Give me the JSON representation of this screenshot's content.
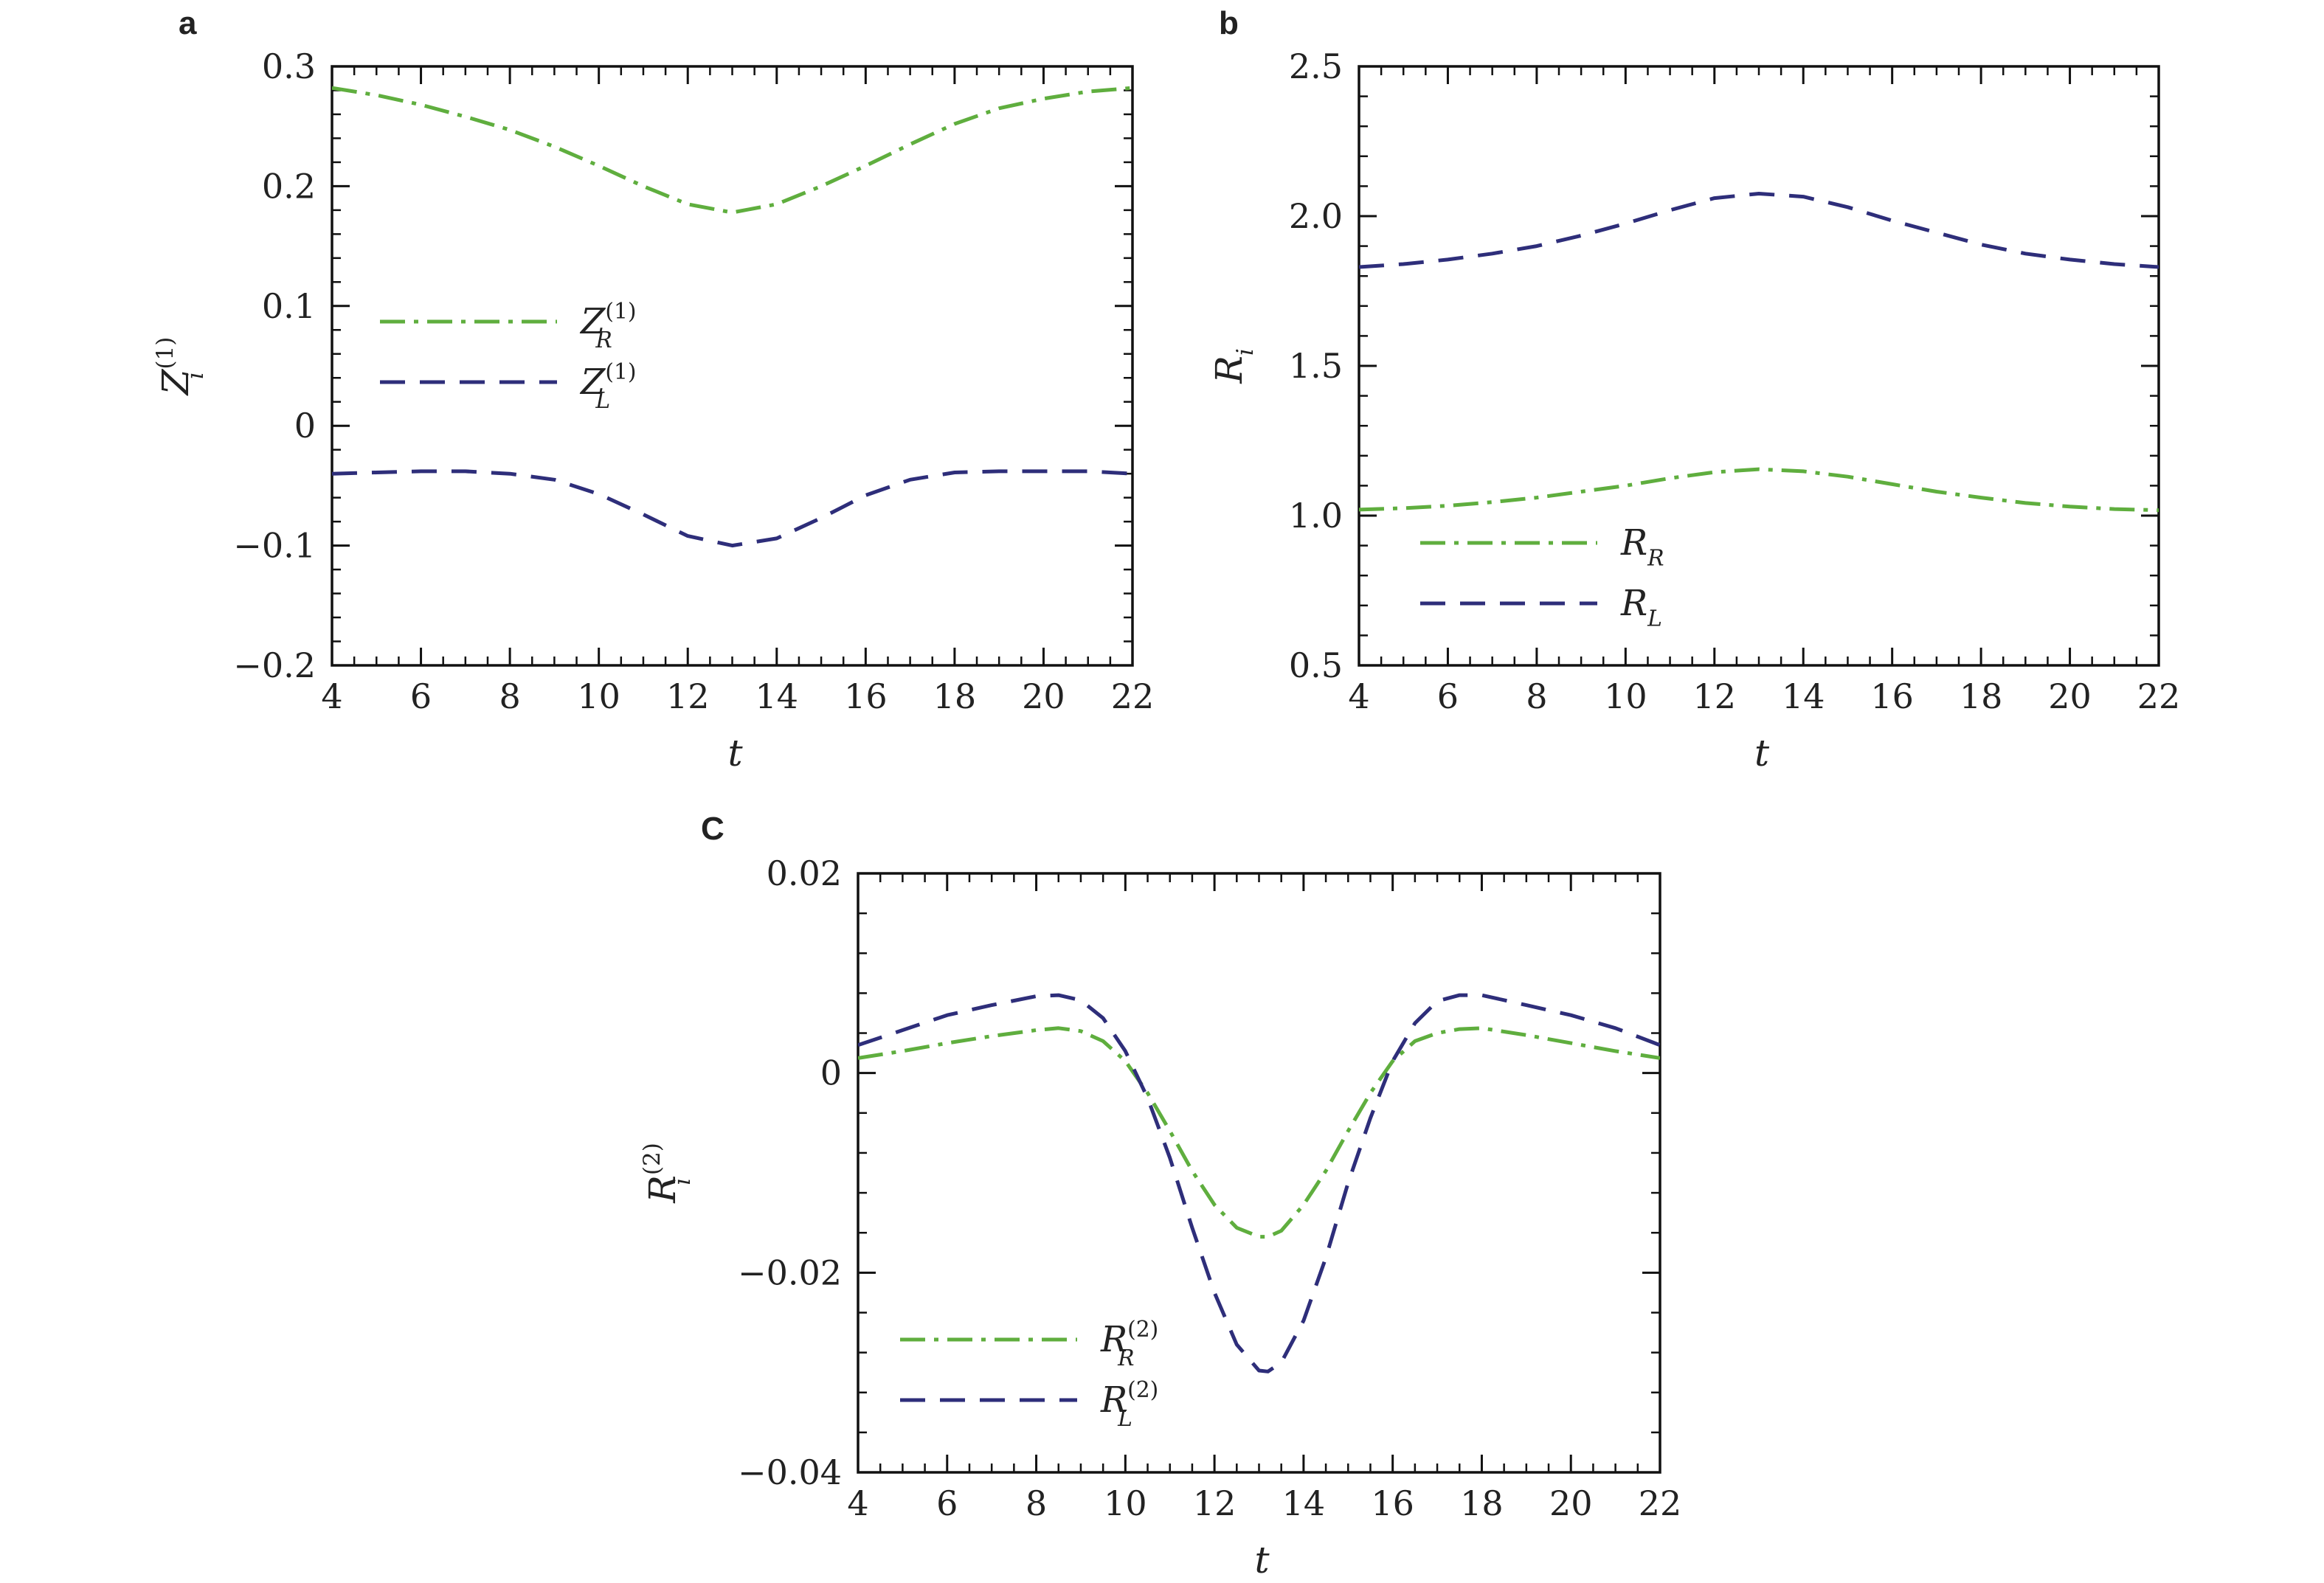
{
  "chart_data": [
    {
      "panel_label": "a",
      "type": "line",
      "xlabel": "t",
      "ylabel": {
        "base": "Z",
        "sub": "i",
        "sup": "(1)"
      },
      "xlim": [
        4,
        22
      ],
      "ylim": [
        -0.2,
        0.3
      ],
      "xticks": [
        4,
        6,
        8,
        10,
        12,
        14,
        16,
        18,
        20,
        22
      ],
      "xtick_labels": [
        "4",
        "6",
        "8",
        "10",
        "12",
        "14",
        "16",
        "18",
        "20",
        "22"
      ],
      "yticks": [
        -0.2,
        -0.1,
        0,
        0.1,
        0.2,
        0.3
      ],
      "ytick_labels": [
        "−0.2",
        "−0.1",
        "0",
        "0.1",
        "0.2",
        "0.3"
      ],
      "legend_position": "center-left",
      "series": [
        {
          "name": {
            "base": "Z",
            "sub": "R",
            "sup": "(1)"
          },
          "style": "dashdot",
          "color": "#5fae3e",
          "x": [
            4,
            5,
            6,
            7,
            8,
            9,
            10,
            11,
            12,
            13,
            14,
            15,
            16,
            17,
            18,
            19,
            20,
            21,
            22
          ],
          "y": [
            0.282,
            0.276,
            0.268,
            0.258,
            0.247,
            0.233,
            0.217,
            0.2,
            0.185,
            0.178,
            0.185,
            0.2,
            0.217,
            0.235,
            0.252,
            0.265,
            0.273,
            0.279,
            0.282
          ]
        },
        {
          "name": {
            "base": "Z",
            "sub": "L",
            "sup": "(1)"
          },
          "style": "dashed",
          "color": "#2e2e7a",
          "x": [
            4,
            5,
            6,
            7,
            8,
            9,
            10,
            11,
            12,
            13,
            14,
            15,
            16,
            17,
            18,
            19,
            20,
            21,
            22
          ],
          "y": [
            -0.04,
            -0.039,
            -0.038,
            -0.038,
            -0.04,
            -0.045,
            -0.057,
            -0.074,
            -0.092,
            -0.1,
            -0.094,
            -0.077,
            -0.058,
            -0.045,
            -0.039,
            -0.038,
            -0.038,
            -0.038,
            -0.04
          ]
        }
      ]
    },
    {
      "panel_label": "b",
      "type": "line",
      "xlabel": "t",
      "ylabel": {
        "base": "R",
        "sub": "i",
        "sup": ""
      },
      "xlim": [
        4,
        22
      ],
      "ylim": [
        0.5,
        2.5
      ],
      "xticks": [
        4,
        6,
        8,
        10,
        12,
        14,
        16,
        18,
        20,
        22
      ],
      "xtick_labels": [
        "4",
        "6",
        "8",
        "10",
        "12",
        "14",
        "16",
        "18",
        "20",
        "22"
      ],
      "yticks": [
        0.5,
        1.0,
        1.5,
        2.0,
        2.5
      ],
      "ytick_labels": [
        "0.5",
        "1.0",
        "1.5",
        "2.0",
        "2.5"
      ],
      "legend_position": "bottom-left",
      "series": [
        {
          "name": {
            "base": "R",
            "sub": "R",
            "sup": ""
          },
          "style": "dashdot",
          "color": "#5fae3e",
          "x": [
            4,
            5,
            6,
            7,
            8,
            9,
            10,
            11,
            12,
            13,
            14,
            15,
            16,
            17,
            18,
            19,
            20,
            21,
            22
          ],
          "y": [
            1.02,
            1.025,
            1.033,
            1.045,
            1.06,
            1.08,
            1.1,
            1.125,
            1.145,
            1.155,
            1.148,
            1.13,
            1.105,
            1.08,
            1.06,
            1.042,
            1.03,
            1.022,
            1.018
          ]
        },
        {
          "name": {
            "base": "R",
            "sub": "L",
            "sup": ""
          },
          "style": "dashed",
          "color": "#2e2e7a",
          "x": [
            4,
            5,
            6,
            7,
            8,
            9,
            10,
            11,
            12,
            13,
            14,
            15,
            16,
            17,
            18,
            19,
            20,
            21,
            22
          ],
          "y": [
            1.83,
            1.84,
            1.855,
            1.875,
            1.9,
            1.935,
            1.975,
            2.02,
            2.06,
            2.075,
            2.065,
            2.03,
            1.985,
            1.945,
            1.905,
            1.875,
            1.855,
            1.84,
            1.83
          ]
        }
      ]
    },
    {
      "panel_label": "C",
      "type": "line",
      "xlabel": "t",
      "ylabel": {
        "base": "R",
        "sub": "i",
        "sup": "(2)"
      },
      "xlim": [
        4,
        22
      ],
      "ylim": [
        -0.04,
        0.02
      ],
      "xticks": [
        4,
        6,
        8,
        10,
        12,
        14,
        16,
        18,
        20,
        22
      ],
      "xtick_labels": [
        "4",
        "6",
        "8",
        "10",
        "12",
        "14",
        "16",
        "18",
        "20",
        "22"
      ],
      "yticks": [
        -0.04,
        -0.02,
        0,
        0.02
      ],
      "ytick_labels": [
        "−0.04",
        "−0.02",
        "0",
        "0.02"
      ],
      "legend_position": "bottom-left",
      "series": [
        {
          "name": {
            "base": "R",
            "sub": "R",
            "sup": "(2)"
          },
          "style": "dashdot",
          "color": "#5fae3e",
          "x": [
            4,
            5,
            6,
            7,
            8,
            8.5,
            9,
            9.5,
            10,
            10.5,
            11,
            11.5,
            12,
            12.5,
            13,
            13.2,
            13.5,
            14,
            14.5,
            15,
            15.5,
            16,
            16.5,
            17,
            17.5,
            18,
            19,
            20,
            21,
            22
          ],
          "y": [
            0.0015,
            0.0022,
            0.003,
            0.0037,
            0.0043,
            0.0045,
            0.0042,
            0.0032,
            0.0012,
            -0.002,
            -0.0058,
            -0.0098,
            -0.0132,
            -0.0155,
            -0.0164,
            -0.0164,
            -0.0158,
            -0.0132,
            -0.0098,
            -0.0058,
            -0.002,
            0.0012,
            0.0032,
            0.004,
            0.0044,
            0.0045,
            0.0038,
            0.003,
            0.0022,
            0.0015
          ]
        },
        {
          "name": {
            "base": "R",
            "sub": "L",
            "sup": "(2)"
          },
          "style": "dashed",
          "color": "#2e2e7a",
          "x": [
            4,
            5,
            6,
            7,
            8,
            8.5,
            9,
            9.5,
            10,
            10.5,
            11,
            11.5,
            12,
            12.5,
            13,
            13.2,
            13.5,
            14,
            14.5,
            15,
            15.5,
            16,
            16.5,
            17,
            17.5,
            18,
            19,
            20,
            21,
            22
          ],
          "y": [
            0.0028,
            0.0043,
            0.0058,
            0.0068,
            0.0077,
            0.0078,
            0.0073,
            0.0055,
            0.0022,
            -0.0025,
            -0.0085,
            -0.0155,
            -0.022,
            -0.0272,
            -0.0298,
            -0.0299,
            -0.029,
            -0.0248,
            -0.0185,
            -0.011,
            -0.0045,
            0.0012,
            0.005,
            0.0072,
            0.0078,
            0.0078,
            0.0068,
            0.0058,
            0.0045,
            0.0028
          ]
        }
      ]
    }
  ]
}
